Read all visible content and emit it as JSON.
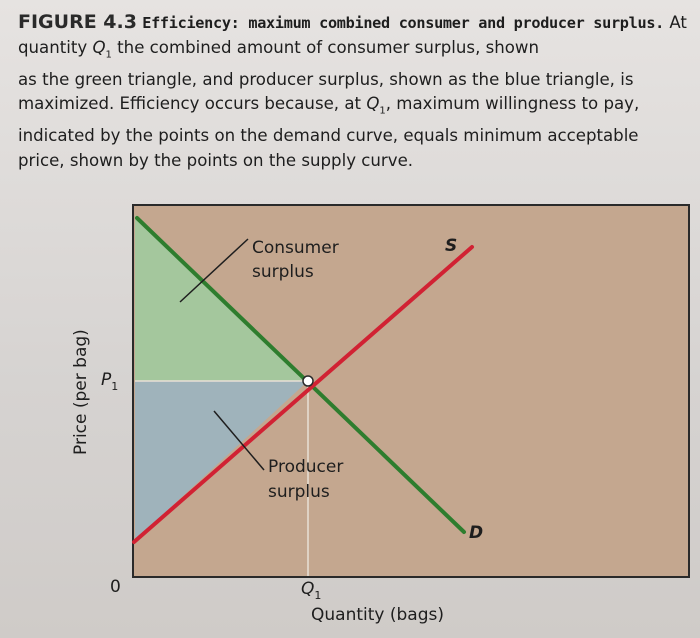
{
  "caption": {
    "figure_label": "FIGURE 4.3",
    "title": "Efficiency: maximum combined consumer and producer surplus.",
    "body_line1_a": "At quantity ",
    "body_line1_q": "Q",
    "body_line1_b": " the combined amount of consumer surplus, shown",
    "body_line2": "as the green triangle, and producer surplus, shown as the blue triangle, is",
    "body_line3_a": "maximized. Efficiency occurs because, at ",
    "body_line3_q": "Q",
    "body_line3_b": ", maximum willingness to pay,",
    "body_line4": "indicated by the points on the demand curve, equals minimum acceptable",
    "body_line5": "price, shown by the points on the supply curve.",
    "subscript": "1"
  },
  "diagram": {
    "y_axis_title": "Price (per bag)",
    "x_axis_title": "Quantity (bags)",
    "origin_label": "0",
    "p1_letter": "P",
    "p1_sub": "1",
    "q1_letter": "Q",
    "q1_sub": "1",
    "supply_label": "S",
    "demand_label": "D",
    "consumer_surplus_line1": "Consumer",
    "consumer_surplus_line2": "surplus",
    "producer_surplus_line1": "Producer",
    "producer_surplus_line2": "surplus"
  },
  "colors": {
    "plot_background": "#c4a78f",
    "consumer_surplus_fill": "#a4c79d",
    "producer_surplus_fill": "#9fb3bb",
    "supply_curve": "#d12233",
    "demand_curve": "#2e7d2e"
  }
}
